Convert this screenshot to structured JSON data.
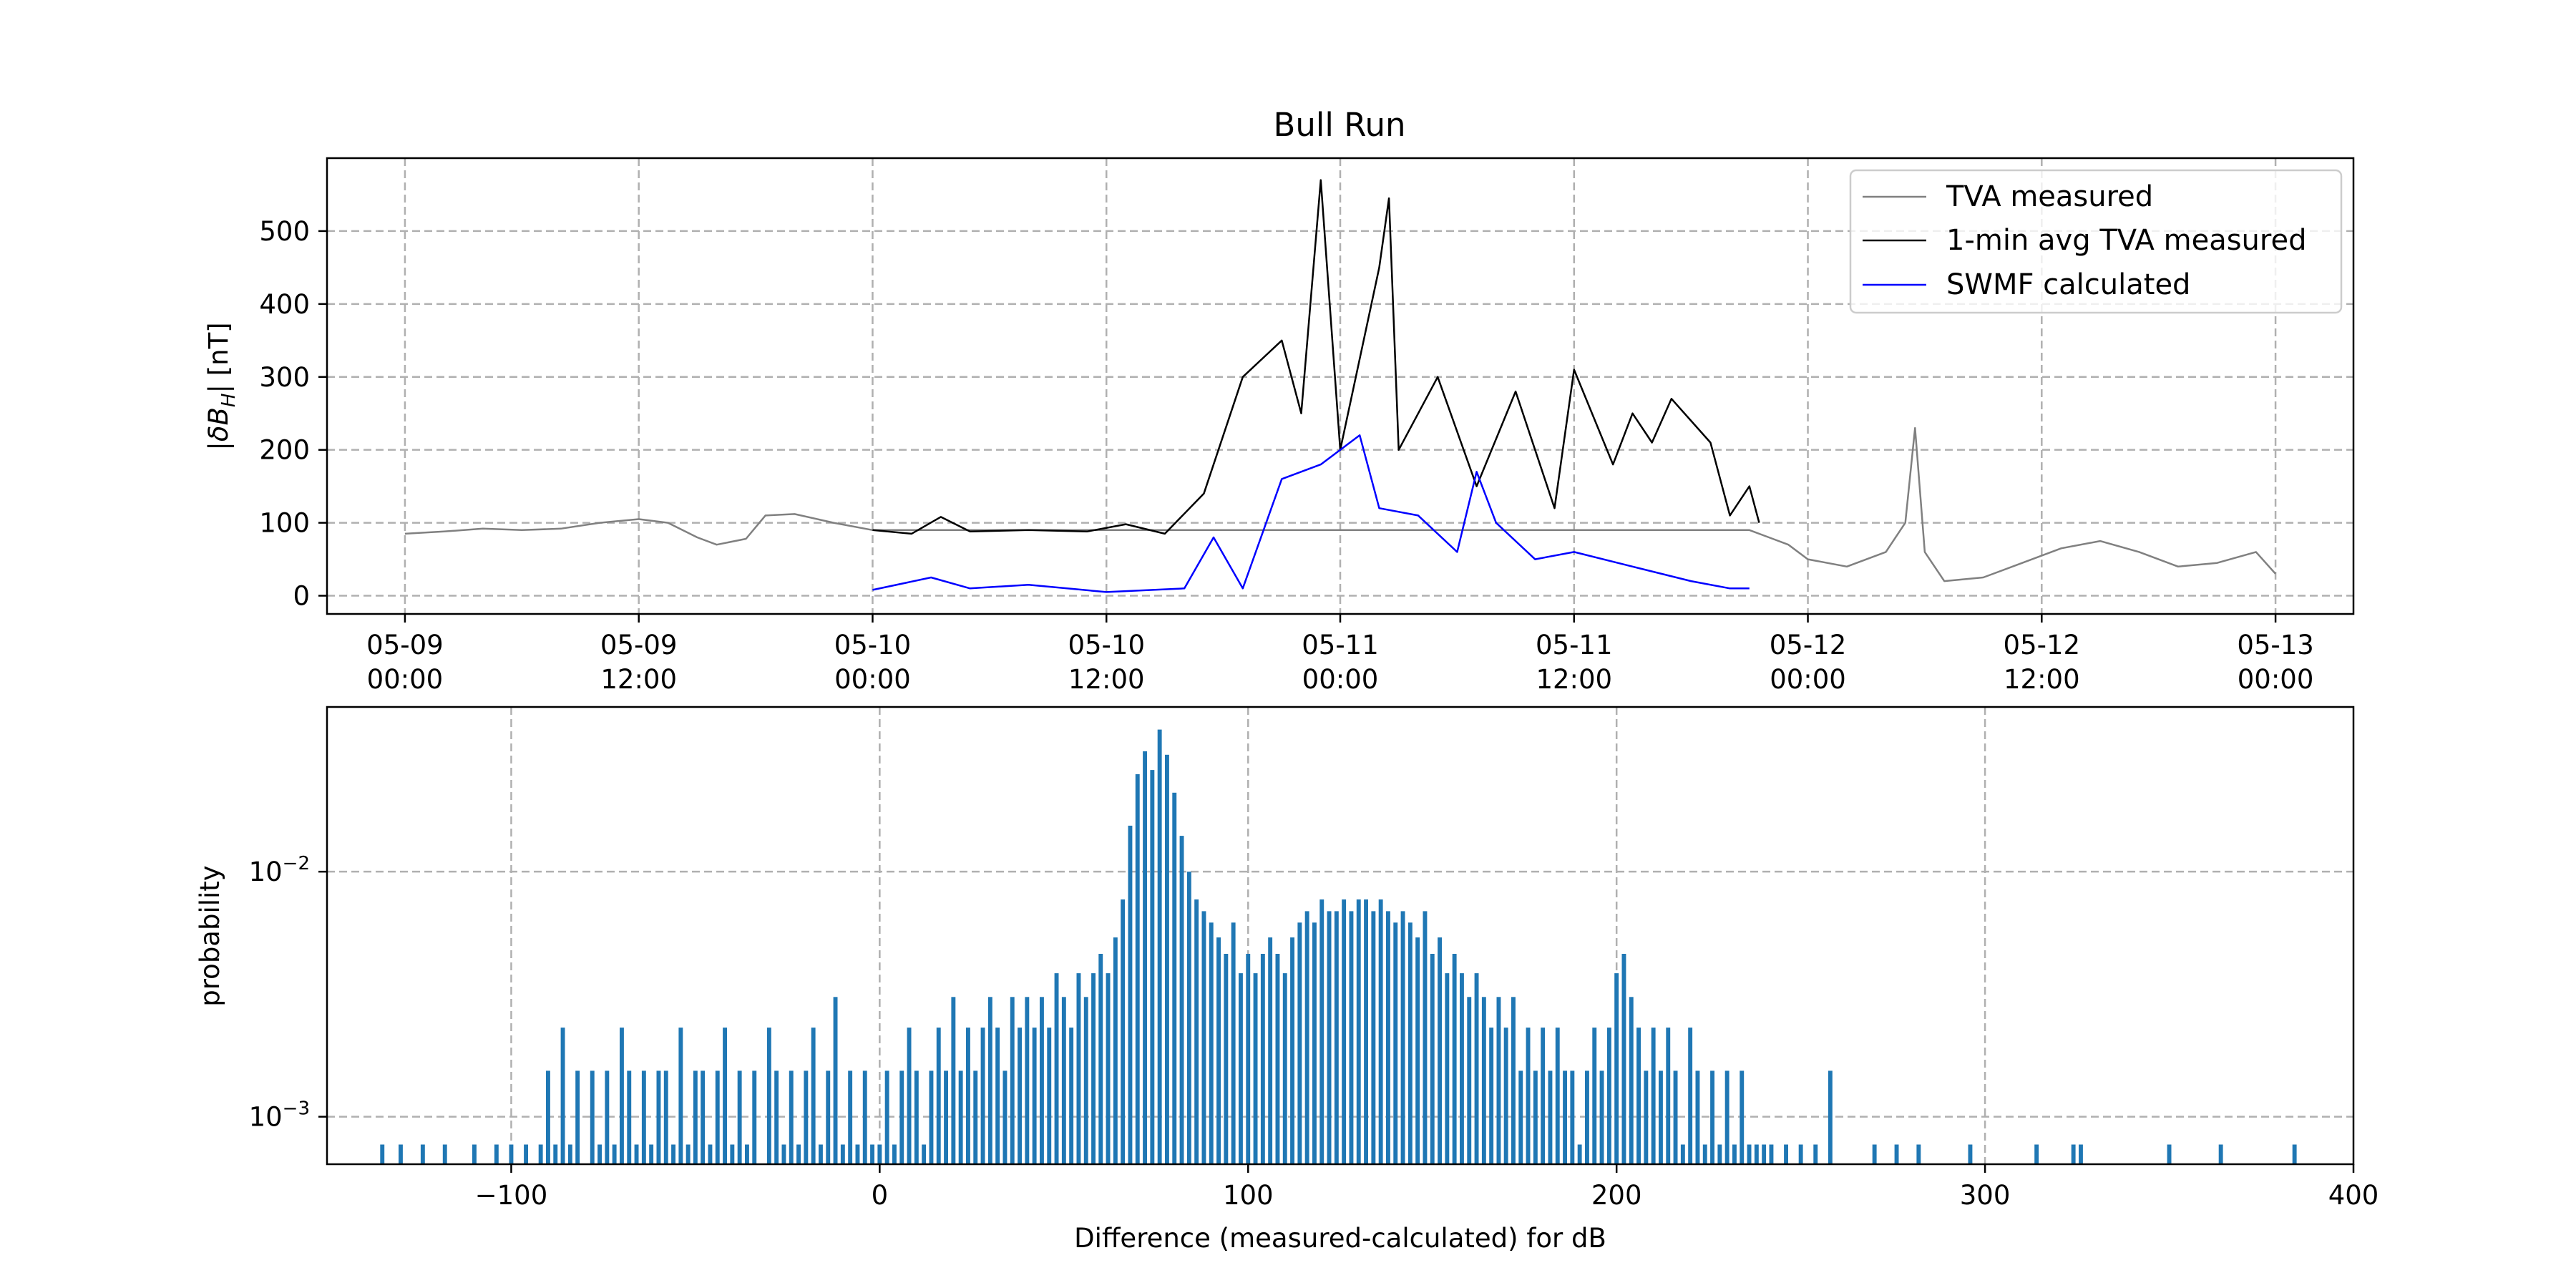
{
  "chart_data": [
    {
      "type": "line",
      "title": "Bull Run",
      "ylabel": "|δB_H| [nT]",
      "xlabel": "",
      "ylim": [
        -25,
        600
      ],
      "xlim_hours": "05-08 20:00 to 05-13 04:00",
      "y_ticks": [
        "0",
        "100",
        "200",
        "300",
        "400",
        "500"
      ],
      "x_ticks": [
        {
          "line1": "05-09",
          "line2": "00:00"
        },
        {
          "line1": "05-09",
          "line2": "12:00"
        },
        {
          "line1": "05-10",
          "line2": "00:00"
        },
        {
          "line1": "05-10",
          "line2": "12:00"
        },
        {
          "line1": "05-11",
          "line2": "00:00"
        },
        {
          "line1": "05-11",
          "line2": "12:00"
        },
        {
          "line1": "05-12",
          "line2": "00:00"
        },
        {
          "line1": "05-12",
          "line2": "12:00"
        },
        {
          "line1": "05-13",
          "line2": "00:00"
        }
      ],
      "grid": true,
      "legend": "top-right",
      "series": [
        {
          "name": "TVA measured",
          "color": "#808080",
          "points": [
            [
              "05-09 00:00",
              85
            ],
            [
              "05-09 02:00",
              88
            ],
            [
              "05-09 04:00",
              92
            ],
            [
              "05-09 06:00",
              90
            ],
            [
              "05-09 08:00",
              92
            ],
            [
              "05-09 10:00",
              100
            ],
            [
              "05-09 12:00",
              105
            ],
            [
              "05-09 13:30",
              100
            ],
            [
              "05-09 15:00",
              80
            ],
            [
              "05-09 16:00",
              70
            ],
            [
              "05-09 17:30",
              78
            ],
            [
              "05-09 18:30",
              110
            ],
            [
              "05-09 20:00",
              112
            ],
            [
              "05-09 22:00",
              100
            ],
            [
              "05-10 00:00",
              90
            ],
            [
              "05-11 21:00",
              90
            ],
            [
              "05-11 22:00",
              80
            ],
            [
              "05-11 23:00",
              70
            ],
            [
              "05-12 00:00",
              50
            ],
            [
              "05-12 02:00",
              40
            ],
            [
              "05-12 04:00",
              60
            ],
            [
              "05-12 05:00",
              100
            ],
            [
              "05-12 05:30",
              230
            ],
            [
              "05-12 06:00",
              60
            ],
            [
              "05-12 07:00",
              20
            ],
            [
              "05-12 09:00",
              25
            ],
            [
              "05-12 11:00",
              45
            ],
            [
              "05-12 13:00",
              65
            ],
            [
              "05-12 15:00",
              75
            ],
            [
              "05-12 17:00",
              60
            ],
            [
              "05-12 19:00",
              40
            ],
            [
              "05-12 21:00",
              45
            ],
            [
              "05-12 23:00",
              60
            ],
            [
              "05-13 00:00",
              30
            ]
          ]
        },
        {
          "name": "1-min avg TVA measured",
          "color": "#000000",
          "points": [
            [
              "05-10 00:00",
              90
            ],
            [
              "05-10 02:00",
              85
            ],
            [
              "05-10 03:30",
              108
            ],
            [
              "05-10 05:00",
              88
            ],
            [
              "05-10 08:00",
              90
            ],
            [
              "05-10 11:00",
              88
            ],
            [
              "05-10 13:00",
              98
            ],
            [
              "05-10 15:00",
              85
            ],
            [
              "05-10 17:00",
              140
            ],
            [
              "05-10 19:00",
              300
            ],
            [
              "05-10 21:00",
              350
            ],
            [
              "05-10 22:00",
              250
            ],
            [
              "05-10 23:00",
              570
            ],
            [
              "05-11 00:00",
              200
            ],
            [
              "05-11 02:00",
              450
            ],
            [
              "05-11 02:30",
              545
            ],
            [
              "05-11 03:00",
              200
            ],
            [
              "05-11 05:00",
              300
            ],
            [
              "05-11 07:00",
              150
            ],
            [
              "05-11 09:00",
              280
            ],
            [
              "05-11 11:00",
              120
            ],
            [
              "05-11 12:00",
              310
            ],
            [
              "05-11 14:00",
              180
            ],
            [
              "05-11 15:00",
              250
            ],
            [
              "05-11 16:00",
              210
            ],
            [
              "05-11 17:00",
              270
            ],
            [
              "05-11 19:00",
              210
            ],
            [
              "05-11 20:00",
              110
            ],
            [
              "05-11 21:00",
              150
            ],
            [
              "05-11 21:30",
              100
            ]
          ]
        },
        {
          "name": "SWMF calculated",
          "color": "#0000ff",
          "points": [
            [
              "05-10 00:00",
              8
            ],
            [
              "05-10 03:00",
              25
            ],
            [
              "05-10 05:00",
              10
            ],
            [
              "05-10 08:00",
              15
            ],
            [
              "05-10 12:00",
              5
            ],
            [
              "05-10 16:00",
              10
            ],
            [
              "05-10 17:30",
              80
            ],
            [
              "05-10 19:00",
              10
            ],
            [
              "05-10 21:00",
              160
            ],
            [
              "05-10 23:00",
              180
            ],
            [
              "05-11 01:00",
              220
            ],
            [
              "05-11 02:00",
              120
            ],
            [
              "05-11 04:00",
              110
            ],
            [
              "05-11 06:00",
              60
            ],
            [
              "05-11 07:00",
              170
            ],
            [
              "05-11 08:00",
              100
            ],
            [
              "05-11 10:00",
              50
            ],
            [
              "05-11 12:00",
              60
            ],
            [
              "05-11 15:00",
              40
            ],
            [
              "05-11 18:00",
              20
            ],
            [
              "05-11 20:00",
              10
            ],
            [
              "05-11 21:00",
              10
            ]
          ]
        }
      ]
    },
    {
      "type": "bar",
      "title": "",
      "xlabel": "Difference (measured-calculated) for dB",
      "ylabel": "probability",
      "yscale": "log",
      "xlim": [
        -150,
        400
      ],
      "ylim": [
        0.00064,
        0.047
      ],
      "x_ticks": [
        "−100",
        "0",
        "100",
        "200",
        "300",
        "400"
      ],
      "y_tick_labels": [
        {
          "base": "10",
          "exp": "−2"
        },
        {
          "base": "10",
          "exp": "−3"
        }
      ],
      "grid": true,
      "color": "#1f77b4",
      "bins": [
        [
          -135,
          0.00077
        ],
        [
          -130,
          0.00077
        ],
        [
          -124,
          0.00077
        ],
        [
          -118,
          0.00077
        ],
        [
          -110,
          0.00077
        ],
        [
          -104,
          0.00077
        ],
        [
          -100,
          0.00077
        ],
        [
          -96,
          0.00077
        ],
        [
          -92,
          0.00077
        ],
        [
          -90,
          0.00154
        ],
        [
          -88,
          0.00077
        ],
        [
          -86,
          0.00231
        ],
        [
          -84,
          0.00077
        ],
        [
          -82,
          0.00154
        ],
        [
          -78,
          0.00154
        ],
        [
          -76,
          0.00077
        ],
        [
          -74,
          0.00154
        ],
        [
          -72,
          0.00077
        ],
        [
          -70,
          0.00231
        ],
        [
          -68,
          0.00154
        ],
        [
          -66,
          0.00077
        ],
        [
          -64,
          0.00154
        ],
        [
          -62,
          0.00077
        ],
        [
          -60,
          0.00154
        ],
        [
          -58,
          0.00154
        ],
        [
          -56,
          0.00077
        ],
        [
          -54,
          0.00231
        ],
        [
          -52,
          0.00077
        ],
        [
          -50,
          0.00154
        ],
        [
          -48,
          0.00154
        ],
        [
          -46,
          0.00077
        ],
        [
          -44,
          0.00154
        ],
        [
          -42,
          0.00231
        ],
        [
          -40,
          0.00077
        ],
        [
          -38,
          0.00154
        ],
        [
          -36,
          0.00077
        ],
        [
          -34,
          0.00154
        ],
        [
          -30,
          0.00231
        ],
        [
          -28,
          0.00154
        ],
        [
          -26,
          0.00077
        ],
        [
          -24,
          0.00154
        ],
        [
          -22,
          0.00077
        ],
        [
          -20,
          0.00154
        ],
        [
          -18,
          0.00231
        ],
        [
          -16,
          0.00077
        ],
        [
          -14,
          0.00154
        ],
        [
          -12,
          0.00308
        ],
        [
          -10,
          0.00077
        ],
        [
          -8,
          0.00154
        ],
        [
          -6,
          0.00077
        ],
        [
          -4,
          0.00154
        ],
        [
          -2,
          0.00077
        ],
        [
          0,
          0.00077
        ],
        [
          2,
          0.00154
        ],
        [
          4,
          0.00077
        ],
        [
          6,
          0.00154
        ],
        [
          8,
          0.00231
        ],
        [
          10,
          0.00154
        ],
        [
          12,
          0.00077
        ],
        [
          14,
          0.00154
        ],
        [
          16,
          0.00231
        ],
        [
          18,
          0.00154
        ],
        [
          20,
          0.00308
        ],
        [
          22,
          0.00154
        ],
        [
          24,
          0.00231
        ],
        [
          26,
          0.00154
        ],
        [
          28,
          0.00231
        ],
        [
          30,
          0.00308
        ],
        [
          32,
          0.00231
        ],
        [
          34,
          0.00154
        ],
        [
          36,
          0.00308
        ],
        [
          38,
          0.00231
        ],
        [
          40,
          0.00308
        ],
        [
          42,
          0.00231
        ],
        [
          44,
          0.00308
        ],
        [
          46,
          0.00231
        ],
        [
          48,
          0.00385
        ],
        [
          50,
          0.00308
        ],
        [
          52,
          0.00231
        ],
        [
          54,
          0.00385
        ],
        [
          56,
          0.00308
        ],
        [
          58,
          0.00385
        ],
        [
          60,
          0.00462
        ],
        [
          62,
          0.00385
        ],
        [
          64,
          0.00539
        ],
        [
          66,
          0.0077
        ],
        [
          68,
          0.0154
        ],
        [
          70,
          0.025
        ],
        [
          72,
          0.031
        ],
        [
          74,
          0.026
        ],
        [
          76,
          0.038
        ],
        [
          78,
          0.03
        ],
        [
          80,
          0.021
        ],
        [
          82,
          0.014
        ],
        [
          84,
          0.01
        ],
        [
          86,
          0.0077
        ],
        [
          88,
          0.0069
        ],
        [
          90,
          0.0062
        ],
        [
          92,
          0.00539
        ],
        [
          94,
          0.00462
        ],
        [
          96,
          0.0062
        ],
        [
          98,
          0.00385
        ],
        [
          100,
          0.00462
        ],
        [
          102,
          0.00385
        ],
        [
          104,
          0.00462
        ],
        [
          106,
          0.00539
        ],
        [
          108,
          0.00462
        ],
        [
          110,
          0.00385
        ],
        [
          112,
          0.00539
        ],
        [
          114,
          0.0062
        ],
        [
          116,
          0.0069
        ],
        [
          118,
          0.0062
        ],
        [
          120,
          0.0077
        ],
        [
          122,
          0.0069
        ],
        [
          124,
          0.0069
        ],
        [
          126,
          0.0077
        ],
        [
          128,
          0.0069
        ],
        [
          130,
          0.0077
        ],
        [
          132,
          0.0077
        ],
        [
          134,
          0.0069
        ],
        [
          136,
          0.0077
        ],
        [
          138,
          0.0069
        ],
        [
          140,
          0.0062
        ],
        [
          142,
          0.0069
        ],
        [
          144,
          0.0062
        ],
        [
          146,
          0.00539
        ],
        [
          148,
          0.0069
        ],
        [
          150,
          0.00462
        ],
        [
          152,
          0.00539
        ],
        [
          154,
          0.00385
        ],
        [
          156,
          0.00462
        ],
        [
          158,
          0.00385
        ],
        [
          160,
          0.00308
        ],
        [
          162,
          0.00385
        ],
        [
          164,
          0.00308
        ],
        [
          166,
          0.00231
        ],
        [
          168,
          0.00308
        ],
        [
          170,
          0.00231
        ],
        [
          172,
          0.00308
        ],
        [
          174,
          0.00154
        ],
        [
          176,
          0.00231
        ],
        [
          178,
          0.00154
        ],
        [
          180,
          0.00231
        ],
        [
          182,
          0.00154
        ],
        [
          184,
          0.00231
        ],
        [
          186,
          0.00154
        ],
        [
          188,
          0.00154
        ],
        [
          190,
          0.00077
        ],
        [
          192,
          0.00154
        ],
        [
          194,
          0.00231
        ],
        [
          196,
          0.00154
        ],
        [
          198,
          0.00231
        ],
        [
          200,
          0.00385
        ],
        [
          202,
          0.00462
        ],
        [
          204,
          0.00308
        ],
        [
          206,
          0.00231
        ],
        [
          208,
          0.00154
        ],
        [
          210,
          0.00231
        ],
        [
          212,
          0.00154
        ],
        [
          214,
          0.00231
        ],
        [
          216,
          0.00154
        ],
        [
          218,
          0.00077
        ],
        [
          220,
          0.00231
        ],
        [
          222,
          0.00154
        ],
        [
          224,
          0.00077
        ],
        [
          226,
          0.00154
        ],
        [
          228,
          0.00077
        ],
        [
          230,
          0.00154
        ],
        [
          232,
          0.00077
        ],
        [
          234,
          0.00154
        ],
        [
          236,
          0.00077
        ],
        [
          238,
          0.00077
        ],
        [
          240,
          0.00077
        ],
        [
          242,
          0.00077
        ],
        [
          246,
          0.00077
        ],
        [
          250,
          0.00077
        ],
        [
          254,
          0.00077
        ],
        [
          258,
          0.00154
        ],
        [
          270,
          0.00077
        ],
        [
          276,
          0.00077
        ],
        [
          282,
          0.00077
        ],
        [
          296,
          0.00077
        ],
        [
          314,
          0.00077
        ],
        [
          324,
          0.00077
        ],
        [
          326,
          0.00077
        ],
        [
          350,
          0.00077
        ],
        [
          364,
          0.00077
        ],
        [
          384,
          0.00077
        ]
      ]
    }
  ]
}
